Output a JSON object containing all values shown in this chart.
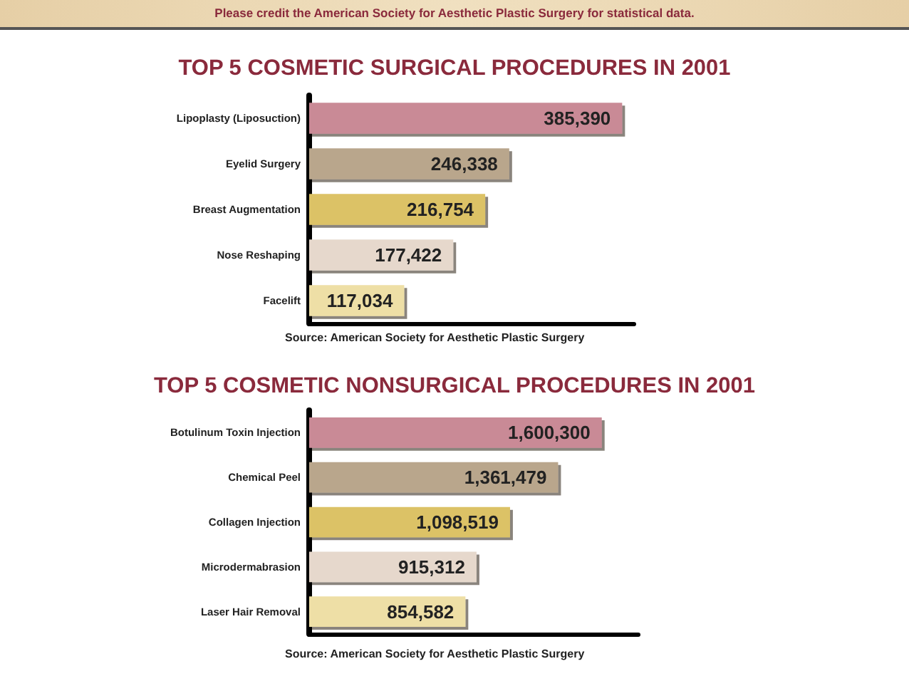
{
  "chart_data": [
    {
      "type": "bar",
      "orientation": "horizontal",
      "title": "TOP 5 COSMETIC SURGICAL PROCEDURES IN 2001",
      "categories": [
        "Lipoplasty (Liposuction)",
        "Eyelid Surgery",
        "Breast Augmentation",
        "Nose Reshaping",
        "Facelift"
      ],
      "values": [
        385390,
        246338,
        216754,
        177422,
        117034
      ],
      "value_labels": [
        "385,390",
        "246,338",
        "216,754",
        "177,422",
        "117,034"
      ],
      "colors": [
        "#c98a96",
        "#b9a68c",
        "#dcc266",
        "#e6d8cc",
        "#eedfa6"
      ],
      "tick_labels": "y",
      "grid": false,
      "annotations": [
        "Please credit the American Society for Aesthetic Plastic Surgery for statistical data.",
        "Source: American Society for Aesthetic Plastic Surgery"
      ]
    },
    {
      "type": "bar",
      "orientation": "horizontal",
      "title": "TOP 5 COSMETIC NONSURGICAL PROCEDURES IN 2001",
      "categories": [
        "Botulinum Toxin Injection",
        "Chemical Peel",
        "Collagen Injection",
        "Microdermabrasion",
        "Laser Hair Removal"
      ],
      "values": [
        1600300,
        1361479,
        1098519,
        915312,
        854582
      ],
      "value_labels": [
        "1,600,300",
        "1,361,479",
        "1,098,519",
        "915,312",
        "854,582"
      ],
      "colors": [
        "#c98a96",
        "#b9a68c",
        "#dcc266",
        "#e6d8cc",
        "#eedfa6"
      ],
      "tick_labels": "y",
      "grid": false,
      "annotations": [
        "Source: American Society for Aesthetic Plastic Surgery"
      ]
    }
  ]
}
